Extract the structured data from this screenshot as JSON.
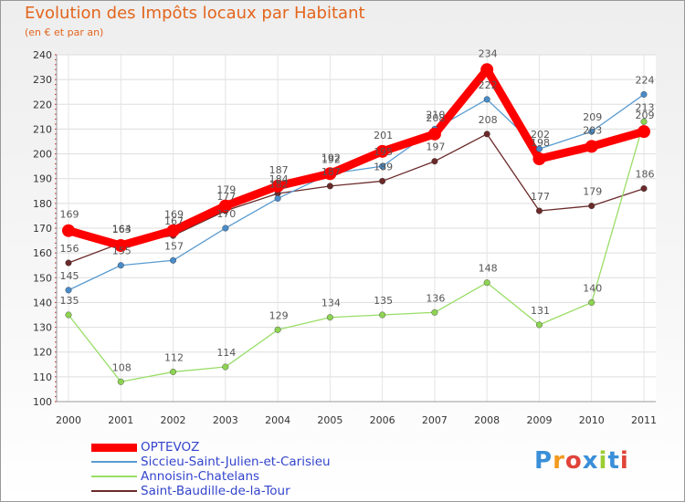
{
  "title": "Evolution des Impôts locaux par Habitant",
  "subtitle": "(en € et par an)",
  "brand": "Proxiti",
  "brand_colors": [
    "#3a8fd8",
    "#f29a1f",
    "#e0433a",
    "#3a8fd8",
    "#9acd32",
    "#3a8fd8",
    "#e0433a"
  ],
  "chart_data": {
    "type": "line",
    "title": "Evolution des Impôts locaux par Habitant",
    "subtitle": "(en € et par an)",
    "xlabel": "",
    "ylabel": "",
    "ylim": [
      100,
      240
    ],
    "yticks": [
      100,
      110,
      120,
      130,
      140,
      150,
      160,
      170,
      180,
      190,
      200,
      210,
      220,
      230,
      240
    ],
    "grid": true,
    "legend_position": "bottom-left",
    "x": [
      "2000",
      "2001",
      "2002",
      "2003",
      "2004",
      "2005",
      "2006",
      "2007",
      "2008",
      "2009",
      "2010",
      "2011"
    ],
    "series": [
      {
        "name": "OPTEVOZ",
        "color": "#ff0000",
        "values": [
          169,
          163,
          169,
          179,
          187,
          192,
          201,
          208,
          234,
          198,
          203,
          209
        ]
      },
      {
        "name": "Siccieu-Saint-Julien-et-Carisieu",
        "color": "#5a9bd0",
        "values": [
          145,
          155,
          157,
          170,
          182,
          192,
          195,
          210,
          222,
          202,
          209,
          224
        ]
      },
      {
        "name": "Annoisin-Chatelans",
        "color": "#99dd66",
        "values": [
          135,
          108,
          112,
          114,
          129,
          134,
          135,
          136,
          148,
          131,
          140,
          213
        ]
      },
      {
        "name": "Saint-Baudille-de-la-Tour",
        "color": "#6b2a2a",
        "values": [
          156,
          164,
          167,
          177,
          184,
          187,
          189,
          197,
          208,
          177,
          179,
          186
        ]
      }
    ]
  }
}
